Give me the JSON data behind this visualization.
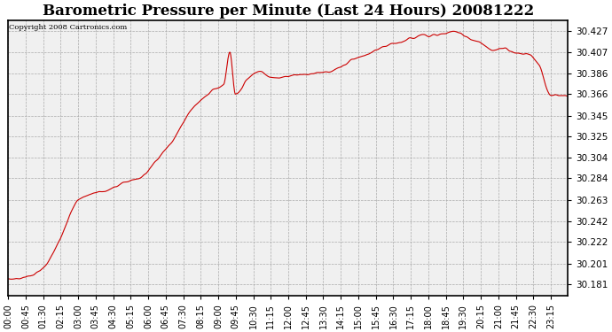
{
  "title": "Barometric Pressure per Minute (Last 24 Hours) 20081222",
  "copyright": "Copyright 2008 Cartronics.com",
  "line_color": "#cc0000",
  "background_color": "#ffffff",
  "plot_bg_color": "#f0f0f0",
  "grid_color": "#aaaaaa",
  "title_fontsize": 12,
  "yticks": [
    30.181,
    30.201,
    30.222,
    30.242,
    30.263,
    30.284,
    30.304,
    30.325,
    30.345,
    30.366,
    30.386,
    30.407,
    30.427
  ],
  "ylim": [
    30.17,
    30.438
  ],
  "xtick_labels": [
    "00:00",
    "00:45",
    "01:30",
    "02:15",
    "03:00",
    "03:45",
    "04:30",
    "05:15",
    "06:00",
    "06:45",
    "07:30",
    "08:15",
    "09:00",
    "09:45",
    "10:30",
    "11:15",
    "12:00",
    "12:45",
    "13:30",
    "14:15",
    "15:00",
    "15:45",
    "16:30",
    "17:15",
    "18:00",
    "18:45",
    "19:30",
    "20:15",
    "21:00",
    "21:45",
    "22:30",
    "23:15"
  ],
  "ctrl_t": [
    0.0,
    0.031,
    0.062,
    0.083,
    0.104,
    0.125,
    0.156,
    0.177,
    0.198,
    0.219,
    0.24,
    0.26,
    0.281,
    0.302,
    0.323,
    0.344,
    0.365,
    0.385,
    0.396,
    0.406,
    0.427,
    0.448,
    0.469,
    0.49,
    0.51,
    0.531,
    0.552,
    0.573,
    0.594,
    0.615,
    0.635,
    0.656,
    0.677,
    0.698,
    0.719,
    0.74,
    0.76,
    0.781,
    0.802,
    0.823,
    0.844,
    0.865,
    0.885,
    0.906,
    0.927,
    0.948,
    0.969,
    1.0
  ],
  "ctrl_v": [
    30.186,
    30.188,
    30.196,
    30.214,
    30.24,
    30.263,
    30.27,
    30.272,
    30.278,
    30.282,
    30.286,
    30.299,
    30.312,
    30.328,
    30.348,
    30.36,
    30.37,
    30.376,
    30.406,
    30.365,
    30.38,
    30.388,
    30.383,
    30.382,
    30.385,
    30.385,
    30.387,
    30.388,
    30.392,
    30.4,
    30.403,
    30.408,
    30.413,
    30.416,
    30.42,
    30.424,
    30.423,
    30.425,
    30.427,
    30.42,
    30.416,
    30.408,
    30.411,
    30.406,
    30.405,
    30.395,
    30.365,
    30.364
  ],
  "noise_sigma": 0.0018,
  "noise_smooth": 4,
  "data_seed": 7
}
